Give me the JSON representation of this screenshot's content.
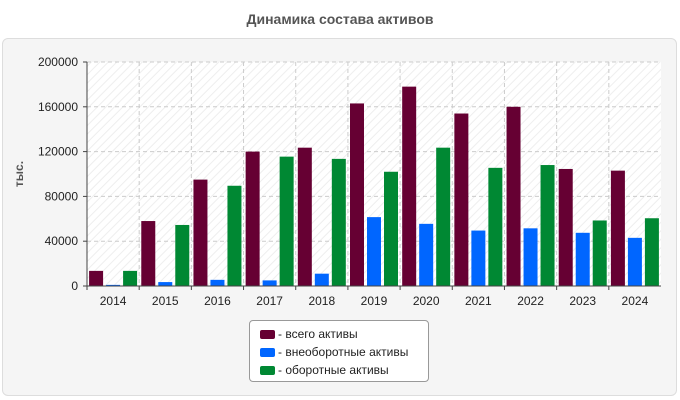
{
  "chart_data": {
    "type": "bar",
    "title": "Динамика состава активов",
    "xlabel": "",
    "ylabel": "тыс.",
    "ylim": [
      0,
      200000
    ],
    "yticks": [
      0,
      40000,
      80000,
      120000,
      160000,
      200000
    ],
    "ytick_labels": [
      "0",
      "40000",
      "80000",
      "120000",
      "160000",
      "200000"
    ],
    "grid": true,
    "legend_position": "bottom-center",
    "categories": [
      "2014",
      "2015",
      "2016",
      "2017",
      "2018",
      "2019",
      "2020",
      "2021",
      "2022",
      "2023",
      "2024"
    ],
    "series": [
      {
        "name": "всего активы",
        "legend_label": "- всего активы",
        "color": "#660033",
        "values": [
          13500,
          58000,
          95000,
          120000,
          123500,
          163000,
          178000,
          154000,
          160000,
          104500,
          103000
        ]
      },
      {
        "name": "внеоборотные активы",
        "legend_label": "- внеоборотные активы",
        "color": "#0066ff",
        "values": [
          1000,
          3500,
          5500,
          5000,
          11000,
          61500,
          55500,
          49500,
          51500,
          47500,
          43000
        ]
      },
      {
        "name": "оборотные активы",
        "legend_label": "- оборотные активы",
        "color": "#008833",
        "values": [
          13500,
          54500,
          89500,
          115500,
          113500,
          102000,
          123500,
          105500,
          108000,
          58500,
          60500
        ]
      }
    ]
  }
}
